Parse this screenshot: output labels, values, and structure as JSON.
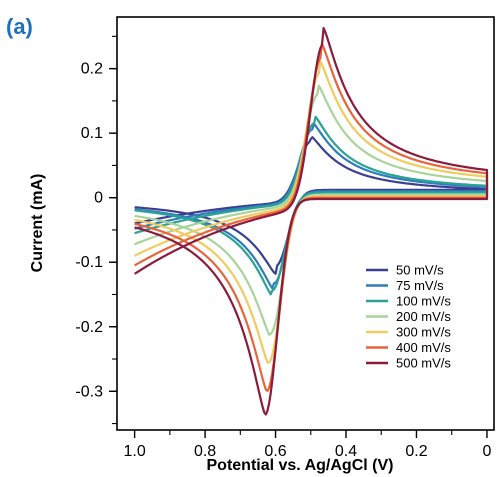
{
  "panel_label": "(a)",
  "chart_data": {
    "type": "line",
    "title": "",
    "xlabel": "Potential vs. Ag/AgCl (V)",
    "ylabel": "Current (mA)",
    "xlim": [
      1.05,
      -0.02
    ],
    "ylim": [
      -0.36,
      0.28
    ],
    "x_inverted": true,
    "x_ticks": [
      1.0,
      0.8,
      0.6,
      0.4,
      0.2,
      0
    ],
    "x_tick_labels": [
      "1.0",
      "0.8",
      "0.6",
      "0.4",
      "0.2",
      "0"
    ],
    "y_ticks": [
      0.2,
      0.1,
      0,
      -0.1,
      -0.2,
      -0.3
    ],
    "y_tick_labels": [
      "0.2",
      "0.1",
      "0",
      "-0.1",
      "-0.2",
      "-0.3"
    ],
    "legend_position": "bottom-right",
    "grid": false,
    "series": [
      {
        "name": "50 mV/s",
        "color": "#3b3f93",
        "pa": 0.092,
        "pc": -0.118,
        "Epa": 0.5,
        "Epc": 0.6,
        "ia1": -0.04,
        "ic0": 0.013,
        "ic1": 0.012
      },
      {
        "name": "75 mV/s",
        "color": "#2e7dbb",
        "pa": 0.112,
        "pc": -0.143,
        "Epa": 0.495,
        "Epc": 0.605,
        "ia1": -0.048,
        "ic0": 0.016,
        "ic1": 0.01
      },
      {
        "name": "100 mV/s",
        "color": "#2aa394",
        "pa": 0.122,
        "pc": -0.152,
        "Epa": 0.49,
        "Epc": 0.61,
        "ia1": -0.055,
        "ic0": 0.018,
        "ic1": 0.008
      },
      {
        "name": "200 mV/s",
        "color": "#a8d49a",
        "pa": 0.168,
        "pc": -0.215,
        "Epa": 0.48,
        "Epc": 0.615,
        "ia1": -0.072,
        "ic0": 0.025,
        "ic1": 0.004
      },
      {
        "name": "300 mV/s",
        "color": "#f0cc60",
        "pa": 0.203,
        "pc": -0.258,
        "Epa": 0.475,
        "Epc": 0.62,
        "ia1": -0.09,
        "ic0": 0.033,
        "ic1": 0.002
      },
      {
        "name": "400 mV/s",
        "color": "#e8643a",
        "pa": 0.228,
        "pc": -0.3,
        "Epa": 0.47,
        "Epc": 0.625,
        "ia1": -0.105,
        "ic0": 0.04,
        "ic1": 0.0
      },
      {
        "name": "500 mV/s",
        "color": "#8b1a3c",
        "pa": 0.25,
        "pc": -0.335,
        "Epa": 0.465,
        "Epc": 0.63,
        "ia1": -0.118,
        "ic0": 0.047,
        "ic1": -0.002
      }
    ]
  }
}
